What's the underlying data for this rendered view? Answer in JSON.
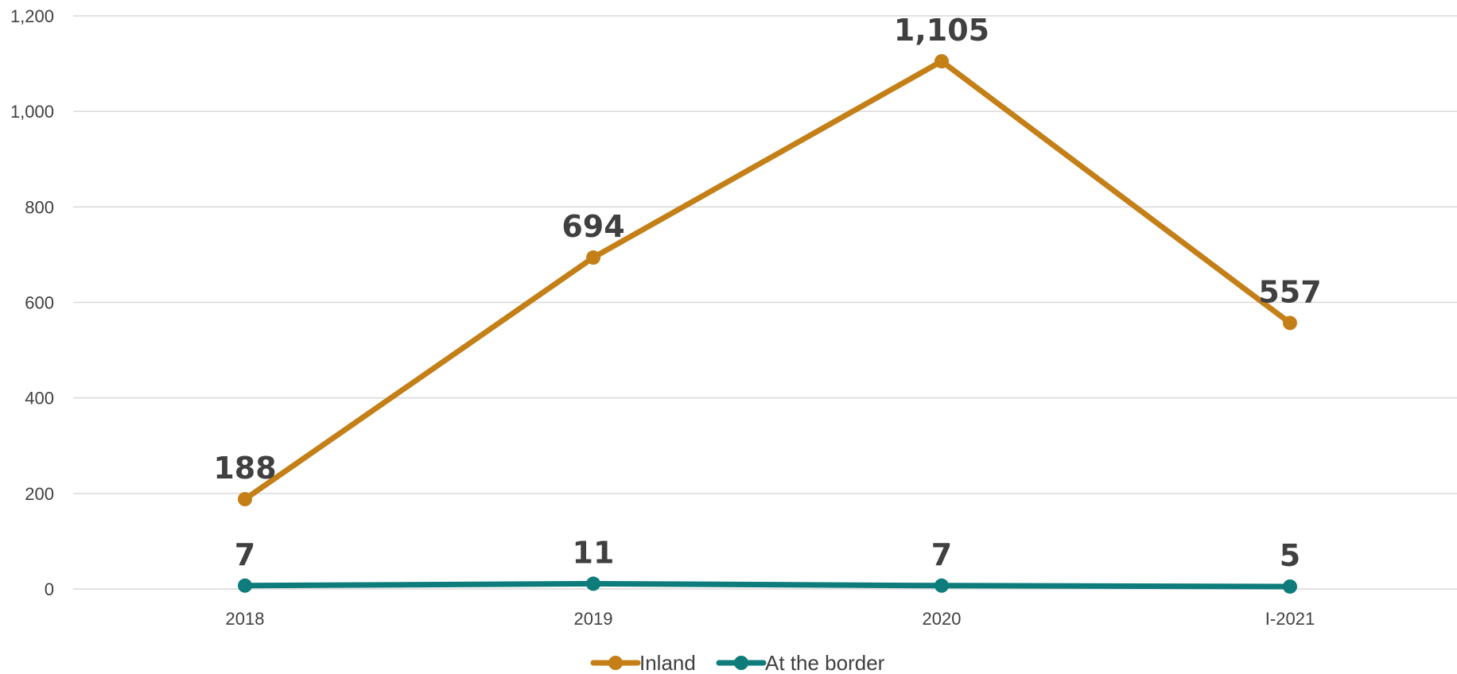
{
  "chart_data": {
    "type": "line",
    "categories": [
      "2018",
      "2019",
      "2020",
      "I-2021"
    ],
    "series": [
      {
        "name": "Inland",
        "values": [
          188,
          694,
          1105,
          557
        ],
        "labels": [
          "188",
          "694",
          "1,105",
          "557"
        ],
        "color": "#C47F17"
      },
      {
        "name": "At the border",
        "values": [
          7,
          11,
          7,
          5
        ],
        "labels": [
          "7",
          "11",
          "7",
          "5"
        ],
        "color": "#0E7C7B"
      }
    ],
    "y_ticks": [
      0,
      200,
      400,
      600,
      800,
      1000,
      1200
    ],
    "y_tick_labels": [
      "0",
      "200",
      "400",
      "600",
      "800",
      "1,000",
      "1,200"
    ],
    "ylim": [
      0,
      1200
    ],
    "title": "",
    "xlabel": "",
    "ylabel": "",
    "grid": true,
    "legend_position": "bottom-center",
    "grid_color": "#d9d9d9",
    "text_color": "#404040"
  }
}
